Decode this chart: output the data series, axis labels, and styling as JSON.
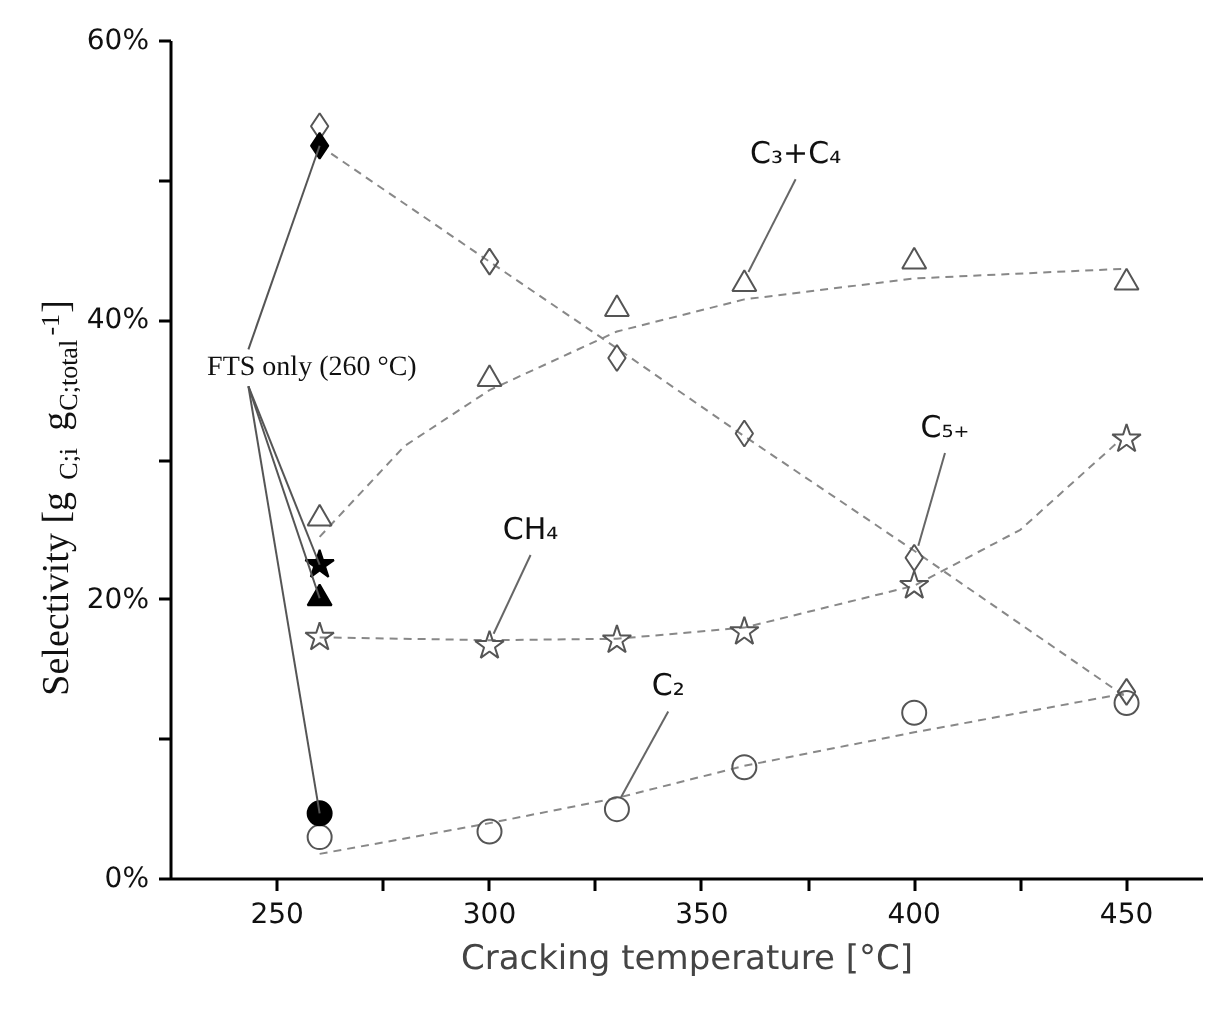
{
  "chart_data": {
    "type": "scatter",
    "xlabel": "Cracking temperature [°C]",
    "ylabel": "Selectivity [g$_{C;i}$ g$_{C;total}$$^{-1}$]",
    "x": [
      260,
      300,
      330,
      360,
      400,
      450
    ],
    "xlim": [
      225,
      468
    ],
    "ylim": [
      0,
      60
    ],
    "xticks": [
      250,
      {
        "value": 275,
        "label": null
      },
      300,
      {
        "value": 325,
        "label": null
      },
      350,
      {
        "value": 375,
        "label": null
      },
      400,
      {
        "value": 425,
        "label": null
      },
      450
    ],
    "yticks": [
      {
        "value": 0,
        "label": "0%"
      },
      {
        "value": 10,
        "label": null
      },
      {
        "value": 20,
        "label": "20%"
      },
      {
        "value": 30,
        "label": null
      },
      {
        "value": 40,
        "label": "40%"
      },
      {
        "value": 50,
        "label": null
      },
      {
        "value": 60,
        "label": "60%"
      }
    ],
    "grid": false,
    "annotations": [
      {
        "text": "FTS only (260 °C)",
        "x": 260,
        "y": 52.5
      }
    ],
    "series": [
      {
        "type": "line",
        "x": [
          260,
          300,
          330,
          360,
          400,
          450
        ],
        "values": [
          52.5,
          44.2,
          38.0,
          31.7,
          23.5,
          13.0
        ],
        "color": "#888888",
        "line_style": "dashed"
      },
      {
        "type": "line",
        "x": [
          260,
          280,
          300,
          330,
          360,
          400,
          450
        ],
        "values": [
          24.5,
          31.0,
          35.0,
          39.2,
          41.5,
          43.0,
          43.7
        ],
        "color": "#888888",
        "line_style": "dashed"
      },
      {
        "type": "line",
        "x": [
          260,
          300,
          330,
          360,
          400,
          425,
          448
        ],
        "values": [
          17.3,
          17.1,
          17.2,
          18.0,
          21.0,
          25.0,
          31.3
        ],
        "color": "#888888",
        "line_style": "dashed"
      },
      {
        "type": "line",
        "x": [
          260,
          300,
          330,
          360,
          400,
          450
        ],
        "values": [
          1.8,
          4.0,
          5.8,
          8.1,
          10.5,
          13.3
        ],
        "color": "#888888",
        "line_style": "dashed"
      },
      {
        "name": "C₅₊",
        "color": "#555555",
        "marker": "diamond",
        "values": [
          53.9,
          44.2,
          37.3,
          31.9,
          23.0,
          13.4
        ]
      },
      {
        "name": "C₃+C₄",
        "color": "#555555",
        "marker": "triangle",
        "values": [
          25.8,
          35.8,
          40.8,
          42.6,
          44.2,
          42.7
        ]
      },
      {
        "name": "CH₄",
        "color": "#555555",
        "marker": "star",
        "values": [
          17.3,
          16.7,
          17.1,
          17.7,
          21.0,
          31.5
        ]
      },
      {
        "name": "C₂",
        "color": "#555555",
        "marker": "circle",
        "values": [
          3.0,
          3.4,
          5.0,
          8.0,
          11.9,
          12.6
        ]
      },
      {
        "x": [
          260
        ],
        "color": "#000000",
        "marker": "diamond",
        "values": [
          52.5
        ]
      },
      {
        "x": [
          260
        ],
        "color": "#000000",
        "marker": "star",
        "values": [
          22.5
        ]
      },
      {
        "x": [
          260
        ],
        "color": "#000000",
        "marker": "triangle",
        "values": [
          20.1
        ]
      },
      {
        "x": [
          260
        ],
        "color": "#000000",
        "marker": "circle",
        "values": [
          4.7
        ]
      }
    ]
  }
}
